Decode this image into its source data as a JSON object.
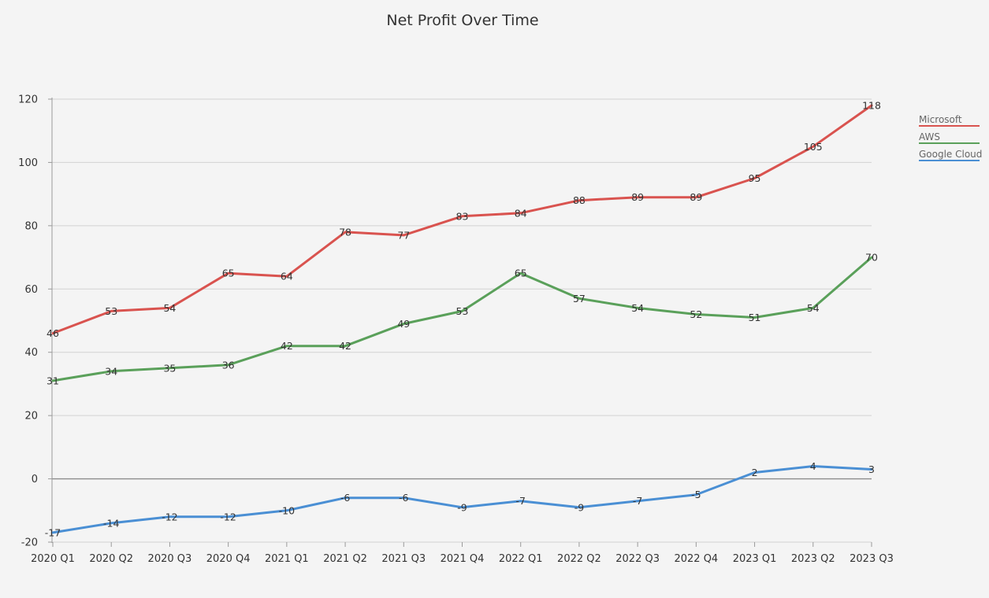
{
  "chart_data": {
    "type": "line",
    "title": "Net Profit Over Time",
    "xlabel": "",
    "ylabel": "",
    "categories": [
      "2020 Q1",
      "2020 Q2",
      "2020 Q3",
      "2020 Q4",
      "2021 Q1",
      "2021 Q2",
      "2021 Q3",
      "2021 Q4",
      "2022 Q1",
      "2022 Q2",
      "2022 Q3",
      "2022 Q4",
      "2023 Q1",
      "2023 Q2",
      "2023 Q3"
    ],
    "ylim": [
      -20,
      120
    ],
    "yticks": [
      -20,
      0,
      20,
      40,
      60,
      80,
      100,
      120
    ],
    "grid": true,
    "legend_position": "right",
    "series": [
      {
        "name": "Microsoft",
        "color": "#d9534f",
        "values": [
          46,
          53,
          54,
          65,
          64,
          78,
          77,
          83,
          84,
          88,
          89,
          89,
          95,
          105,
          118
        ]
      },
      {
        "name": "AWS",
        "color": "#5aa05a",
        "values": [
          31,
          34,
          35,
          36,
          42,
          42,
          49,
          53,
          65,
          57,
          54,
          52,
          51,
          54,
          70
        ]
      },
      {
        "name": "Google Cloud",
        "color": "#4a8fd4",
        "values": [
          -17,
          -14,
          -12,
          -12,
          -10,
          -6,
          -6,
          -9,
          -7,
          -9,
          -7,
          -5,
          2,
          4,
          3
        ]
      }
    ]
  }
}
